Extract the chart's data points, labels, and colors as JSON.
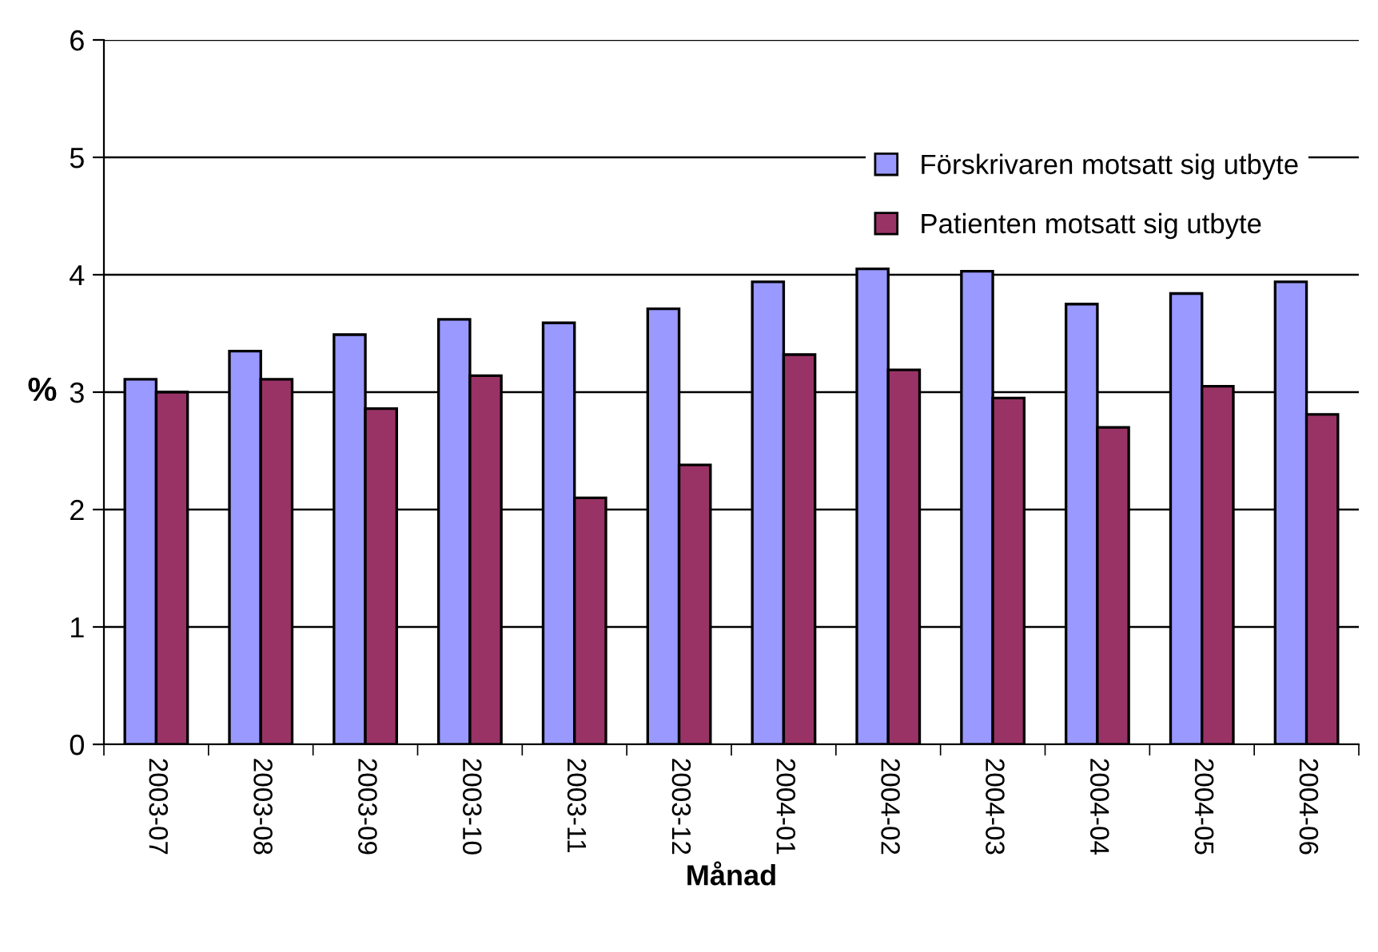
{
  "chart_data": {
    "type": "bar",
    "xlabel": "Månad",
    "ylabel": "%",
    "categories": [
      "2003-07",
      "2003-08",
      "2003-09",
      "2003-10",
      "2003-11",
      "2003-12",
      "2004-01",
      "2004-02",
      "2004-03",
      "2004-04",
      "2004-05",
      "2004-06"
    ],
    "series": [
      {
        "name": "Förskrivaren motsatt sig utbyte",
        "color": "#9999ff",
        "values": [
          3.11,
          3.35,
          3.49,
          3.62,
          3.59,
          3.71,
          3.94,
          4.05,
          4.03,
          3.75,
          3.84,
          3.94
        ]
      },
      {
        "name": "Patienten motsatt sig utbyte",
        "color": "#993366",
        "values": [
          3.0,
          3.11,
          2.86,
          3.14,
          2.1,
          2.38,
          3.32,
          3.19,
          2.95,
          2.7,
          3.05,
          2.81
        ]
      }
    ],
    "ylim": [
      0,
      6
    ],
    "yticks": [
      0,
      1,
      2,
      3,
      4,
      5,
      6
    ],
    "grid": "y",
    "legend": "top right"
  }
}
